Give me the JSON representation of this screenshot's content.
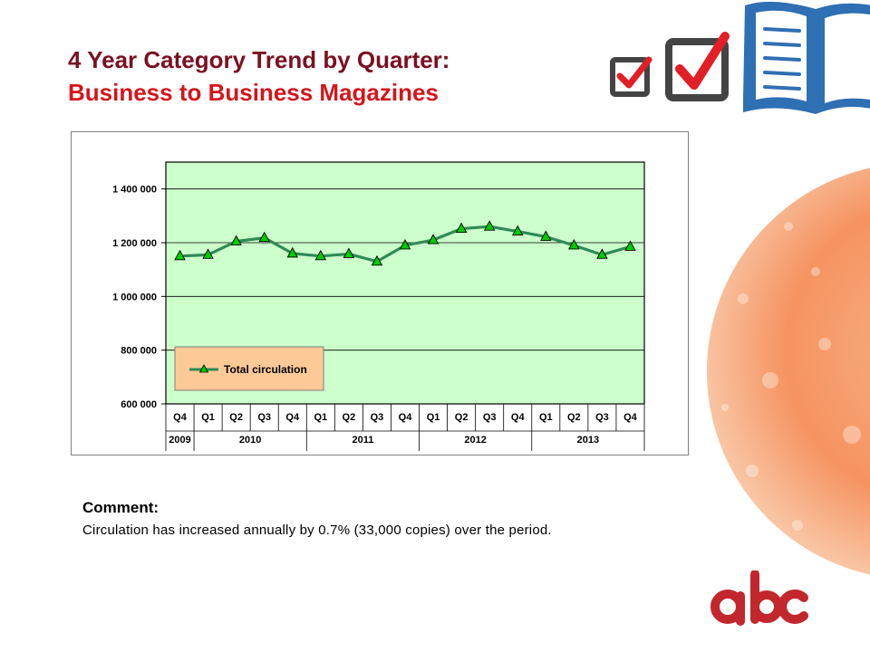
{
  "title": {
    "line1": "4 Year Category Trend by Quarter:",
    "line2": "Business to Business Magazines"
  },
  "comment": {
    "heading": "Comment:",
    "text": "Circulation has increased annually by 0.7% (33,000 copies) over the period."
  },
  "decor": {
    "icons": [
      "checkbox-icon",
      "checkbox-icon",
      "open-book-icon"
    ],
    "logo": "abc-logo",
    "colors": {
      "title_dark": "#7a1020",
      "title_red": "#d4151c",
      "logo_red": "#c1272d"
    }
  },
  "chart_data": {
    "type": "line",
    "categories": [
      "Q4",
      "Q1",
      "Q2",
      "Q3",
      "Q4",
      "Q1",
      "Q2",
      "Q3",
      "Q4",
      "Q1",
      "Q2",
      "Q3",
      "Q4",
      "Q1",
      "Q2",
      "Q3",
      "Q4"
    ],
    "year_groups": [
      {
        "label": "2009",
        "span": 1
      },
      {
        "label": "2010",
        "span": 4
      },
      {
        "label": "2011",
        "span": 4
      },
      {
        "label": "2012",
        "span": 4
      },
      {
        "label": "2013",
        "span": 4
      }
    ],
    "series": [
      {
        "name": "Total circulation",
        "values": [
          1150000,
          1155000,
          1205000,
          1218000,
          1160000,
          1150000,
          1158000,
          1130000,
          1190000,
          1210000,
          1252000,
          1260000,
          1242000,
          1222000,
          1190000,
          1155000,
          1185000
        ],
        "color": "#2e8b57",
        "marker_color": "#00cc00"
      }
    ],
    "yticks": [
      "1 400 000",
      "1 200 000",
      "1 000 000",
      "800 000",
      "600 000"
    ],
    "ylim": [
      600000,
      1500000
    ],
    "grid": true,
    "plot_bg": "#ccffcc",
    "legend": {
      "placement": "bottom-left",
      "bg": "#fcc997"
    }
  }
}
